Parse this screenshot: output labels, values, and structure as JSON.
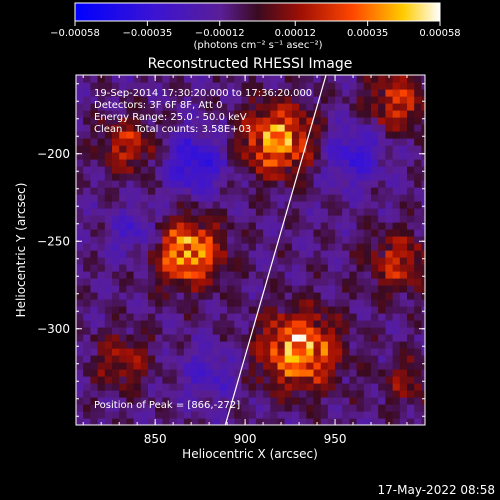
{
  "chart_data": {
    "type": "heatmap",
    "title": "Reconstructed RHESSI Image",
    "xlabel": "Heliocentric X (arcsec)",
    "ylabel": "Heliocentric Y (arcsec)",
    "xlim": [
      806,
      1000
    ],
    "ylim": [
      -355,
      -155
    ],
    "x_ticks": [
      850,
      900,
      950
    ],
    "y_ticks": [
      -200,
      -250,
      -300
    ],
    "x_tick_labels": [
      "850",
      "900",
      "950"
    ],
    "y_tick_labels": [
      "−200",
      "−250",
      "−300"
    ],
    "colorbar": {
      "min": -0.00058,
      "max": 0.00058,
      "tick_values": [
        -0.00058,
        -0.00035,
        -0.00012,
        0.00012,
        0.00035,
        0.00058
      ],
      "tick_labels": [
        "−0.00058",
        "−0.00035",
        "−0.00012",
        "0.00012",
        "0.00035",
        "0.00058"
      ],
      "units_label": "(photons cm⁻² s⁻¹ asec⁻²)"
    },
    "annotations": [
      "19-Sep-2014 17:30:20.000 to 17:36:20.000",
      "Detectors: 3F 6F 8F, Att 0",
      "Energy Range: 25.0 - 50.0 keV",
      "Clean    Total counts: 3.58E+03"
    ],
    "peak_label": "Position of Peak = [866,-272]",
    "limb_line": {
      "x": [
        889,
        945
      ],
      "y": [
        -355,
        -155
      ]
    },
    "bright_sources": [
      {
        "x": 868,
        "y": -256,
        "amp": 1.0,
        "sigma": 13
      },
      {
        "x": 918,
        "y": -192,
        "amp": 0.95,
        "sigma": 14
      },
      {
        "x": 930,
        "y": -312,
        "amp": 1.0,
        "sigma": 15
      },
      {
        "x": 835,
        "y": -195,
        "amp": 0.55,
        "sigma": 11
      },
      {
        "x": 985,
        "y": -170,
        "amp": 0.6,
        "sigma": 12
      },
      {
        "x": 985,
        "y": -262,
        "amp": 0.55,
        "sigma": 12
      },
      {
        "x": 832,
        "y": -318,
        "amp": 0.45,
        "sigma": 11
      },
      {
        "x": 990,
        "y": -330,
        "amp": 0.35,
        "sigma": 10
      }
    ],
    "dark_sources": [
      {
        "x": 872,
        "y": -205,
        "amp": 0.55,
        "sigma": 12
      },
      {
        "x": 960,
        "y": -200,
        "amp": 0.45,
        "sigma": 12
      },
      {
        "x": 840,
        "y": -245,
        "amp": 0.35,
        "sigma": 10
      },
      {
        "x": 880,
        "y": -325,
        "amp": 0.3,
        "sigma": 11
      }
    ],
    "grid": false,
    "legend": "none"
  },
  "timestamp": "17-May-2022 08:58"
}
